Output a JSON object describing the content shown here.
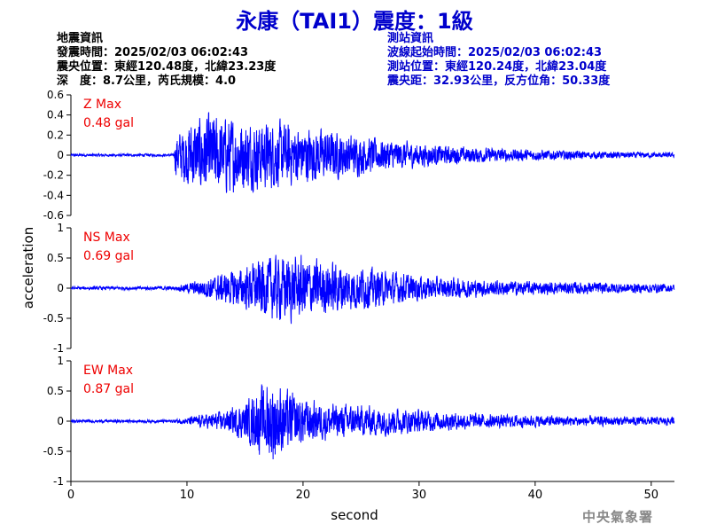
{
  "title": "永康（TAI1）震度：1級",
  "colors": {
    "title": "#0000cc",
    "station_text": "#0000cc",
    "trace": "#0000ff",
    "max_label": "#ee0000",
    "axis": "#000000",
    "agency": "#888888"
  },
  "quake_info": {
    "heading": "地震資訊",
    "time": "發震時間：2025/02/03 06:02:43",
    "location": "震央位置：東經120.48度，北緯23.23度",
    "depth_mag": "深　度：8.7公里，芮氏規模：4.0"
  },
  "station_info": {
    "heading": "測站資訊",
    "wave_start": "波線起始時間：2025/02/03 06:02:43",
    "location": "測站位置：東經120.24度，北緯23.04度",
    "distance": "震央距：32.93公里，反方位角：50.33度"
  },
  "agency": "中央氣象署",
  "chart_data": {
    "type": "line",
    "xlabel": "second",
    "ylabel": "acceleration",
    "xlim": [
      0,
      52
    ],
    "xticks": [
      0,
      10,
      20,
      30,
      40,
      50
    ],
    "panels": [
      {
        "name": "Z",
        "max_label": "Z Max",
        "max_value": "0.48 gal",
        "ylim": [
          -0.6,
          0.6
        ],
        "yticks": [
          -0.6,
          -0.4,
          -0.2,
          0,
          0.2,
          0.4,
          0.6
        ],
        "ytick_labels": [
          "-0.6",
          "-0.4",
          "-0.2",
          "0",
          "0.2",
          "0.4",
          "0.6"
        ],
        "show_xticks": false,
        "envelope": {
          "t": [
            0,
            8.9,
            9.0,
            10.5,
            12,
            14,
            16,
            18,
            20,
            22,
            24,
            26,
            28,
            30,
            32,
            35,
            40,
            45,
            50,
            52
          ],
          "amp": [
            0.012,
            0.012,
            0.18,
            0.33,
            0.37,
            0.34,
            0.3,
            0.3,
            0.26,
            0.23,
            0.19,
            0.16,
            0.13,
            0.11,
            0.085,
            0.07,
            0.05,
            0.035,
            0.025,
            0.022
          ]
        }
      },
      {
        "name": "NS",
        "max_label": "NS Max",
        "max_value": "0.69 gal",
        "ylim": [
          -1,
          1
        ],
        "yticks": [
          -1,
          -0.5,
          0,
          0.5,
          1
        ],
        "ytick_labels": [
          "-1",
          "-0.5",
          "0",
          "0.5",
          "1"
        ],
        "show_xticks": false,
        "envelope": {
          "t": [
            0,
            9,
            11,
            13,
            15,
            17,
            19,
            21,
            23,
            25,
            27,
            29,
            31,
            35,
            40,
            45,
            50,
            52
          ],
          "amp": [
            0.025,
            0.03,
            0.12,
            0.22,
            0.32,
            0.48,
            0.5,
            0.44,
            0.38,
            0.33,
            0.26,
            0.22,
            0.17,
            0.13,
            0.1,
            0.09,
            0.07,
            0.06
          ]
        }
      },
      {
        "name": "EW",
        "max_label": "EW Max",
        "max_value": "0.87 gal",
        "ylim": [
          -1,
          1
        ],
        "yticks": [
          -1,
          -0.5,
          0,
          0.5,
          1
        ],
        "ytick_labels": [
          "-1",
          "-0.5",
          "0",
          "0.5",
          "1"
        ],
        "show_xticks": true,
        "envelope": {
          "t": [
            0,
            9,
            11,
            13,
            15,
            16.5,
            17.5,
            19,
            21,
            23,
            25,
            27,
            30,
            33,
            37,
            42,
            47,
            52
          ],
          "amp": [
            0.02,
            0.025,
            0.09,
            0.14,
            0.28,
            0.55,
            0.62,
            0.42,
            0.3,
            0.25,
            0.24,
            0.22,
            0.17,
            0.13,
            0.1,
            0.08,
            0.07,
            0.06
          ]
        }
      }
    ]
  }
}
